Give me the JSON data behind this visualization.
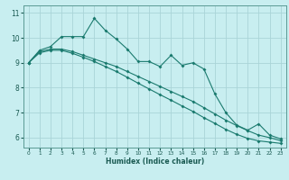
{
  "title": "",
  "xlabel": "Humidex (Indice chaleur)",
  "background_color": "#c8eef0",
  "grid_color": "#aad4d8",
  "line_color": "#1a7a6e",
  "xlim": [
    -0.5,
    23.5
  ],
  "ylim": [
    5.6,
    11.3
  ],
  "yticks": [
    6,
    7,
    8,
    9,
    10,
    11
  ],
  "xticks": [
    0,
    1,
    2,
    3,
    4,
    5,
    6,
    7,
    8,
    9,
    10,
    11,
    12,
    13,
    14,
    15,
    16,
    17,
    18,
    19,
    20,
    21,
    22,
    23
  ],
  "series1_x": [
    0,
    1,
    2,
    3,
    4,
    5,
    6,
    7,
    8,
    9,
    10,
    11,
    12,
    13,
    14,
    15,
    16,
    17,
    18,
    19,
    20,
    21,
    22,
    23
  ],
  "series1_y": [
    9.0,
    9.5,
    9.65,
    10.05,
    10.05,
    10.05,
    10.78,
    10.3,
    9.95,
    9.55,
    9.05,
    9.05,
    8.85,
    9.3,
    8.9,
    9.0,
    8.75,
    7.75,
    7.0,
    6.5,
    6.3,
    6.55,
    6.1,
    5.95
  ],
  "series2_x": [
    0,
    1,
    2,
    3,
    4,
    5,
    6,
    7,
    8,
    9,
    10,
    11,
    12,
    13,
    14,
    15,
    16,
    17,
    18,
    19,
    20,
    21,
    22,
    23
  ],
  "series2_y": [
    9.0,
    9.45,
    9.55,
    9.55,
    9.45,
    9.3,
    9.15,
    9.0,
    8.85,
    8.65,
    8.45,
    8.25,
    8.05,
    7.85,
    7.65,
    7.45,
    7.2,
    6.95,
    6.7,
    6.48,
    6.28,
    6.1,
    6.0,
    5.88
  ],
  "series3_x": [
    0,
    1,
    2,
    3,
    4,
    5,
    6,
    7,
    8,
    9,
    10,
    11,
    12,
    13,
    14,
    15,
    16,
    17,
    18,
    19,
    20,
    21,
    22,
    23
  ],
  "series3_y": [
    9.0,
    9.4,
    9.5,
    9.5,
    9.38,
    9.22,
    9.05,
    8.85,
    8.65,
    8.42,
    8.18,
    7.95,
    7.72,
    7.5,
    7.27,
    7.05,
    6.8,
    6.57,
    6.33,
    6.13,
    5.97,
    5.87,
    5.82,
    5.77
  ]
}
